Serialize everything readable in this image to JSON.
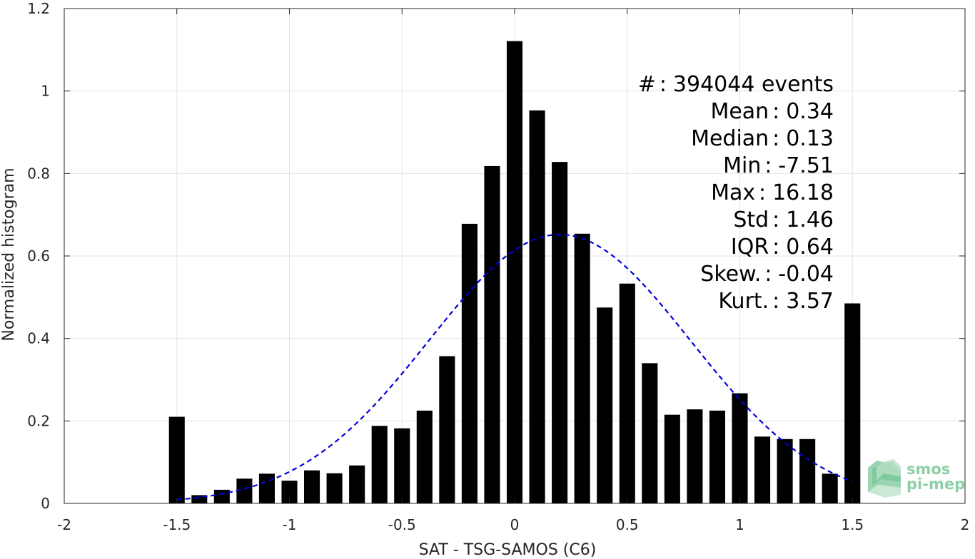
{
  "chart_data": {
    "type": "bar",
    "xlabel": "SAT - TSG-SAMOS (C6)",
    "ylabel": "Normalized histogram",
    "xlim": [
      -2,
      2
    ],
    "ylim": [
      0,
      1.2
    ],
    "grid": true,
    "x_ticks": [
      -2,
      -1.5,
      -1,
      -0.5,
      0,
      0.5,
      1,
      1.5,
      2
    ],
    "x_tick_labels": [
      "-2",
      "-1.5",
      "-1",
      "-0.5",
      "0",
      "0.5",
      "1",
      "1.5",
      "2"
    ],
    "y_ticks": [
      0,
      0.2,
      0.4,
      0.6,
      0.8,
      1,
      1.2
    ],
    "y_tick_labels": [
      "0",
      "0.2",
      "0.4",
      "0.6",
      "0.8",
      "1",
      "1.2"
    ],
    "bar_color": "#000000",
    "bar_width": 0.07,
    "x": [
      -1.5,
      -1.4,
      -1.3,
      -1.2,
      -1.1,
      -1.0,
      -0.9,
      -0.8,
      -0.7,
      -0.6,
      -0.5,
      -0.4,
      -0.3,
      -0.2,
      -0.1,
      0.0,
      0.1,
      0.2,
      0.3,
      0.4,
      0.5,
      0.6,
      0.7,
      0.8,
      0.9,
      1.0,
      1.1,
      1.2,
      1.3,
      1.4,
      1.5
    ],
    "values": [
      0.21,
      0.02,
      0.033,
      0.06,
      0.072,
      0.055,
      0.08,
      0.073,
      0.092,
      0.188,
      0.182,
      0.225,
      0.357,
      0.678,
      0.818,
      1.121,
      0.953,
      0.828,
      0.654,
      0.475,
      0.533,
      0.34,
      0.215,
      0.228,
      0.225,
      0.267,
      0.162,
      0.156,
      0.156,
      0.072,
      0.485
    ],
    "fit_curve": {
      "style": "dashed",
      "color": "#0000dd",
      "x_range": [
        -1.5,
        1.5
      ],
      "mean": 0.2,
      "sigma": 0.58,
      "peak": 0.652
    },
    "stats": [
      {
        "label": "#  ",
        "sep": ":",
        "value": "394044 events"
      },
      {
        "label": "Mean",
        "sep": ":",
        "value": "0.34"
      },
      {
        "label": "Median",
        "sep": ":",
        "value": "0.13"
      },
      {
        "label": "Min",
        "sep": ":",
        "value": "-7.51"
      },
      {
        "label": "Max",
        "sep": ":",
        "value": "16.18"
      },
      {
        "label": "Std",
        "sep": ":",
        "value": "1.46"
      },
      {
        "label": "IQR",
        "sep": ":",
        "value": "0.64"
      },
      {
        "label": "Skew.",
        "sep": ":",
        "value": "-0.04"
      },
      {
        "label": "Kurt.",
        "sep": ":",
        "value": "3.57"
      }
    ]
  },
  "logo": {
    "line1": "smos",
    "line2": "pi-mep",
    "color": "#8fcfa8"
  }
}
